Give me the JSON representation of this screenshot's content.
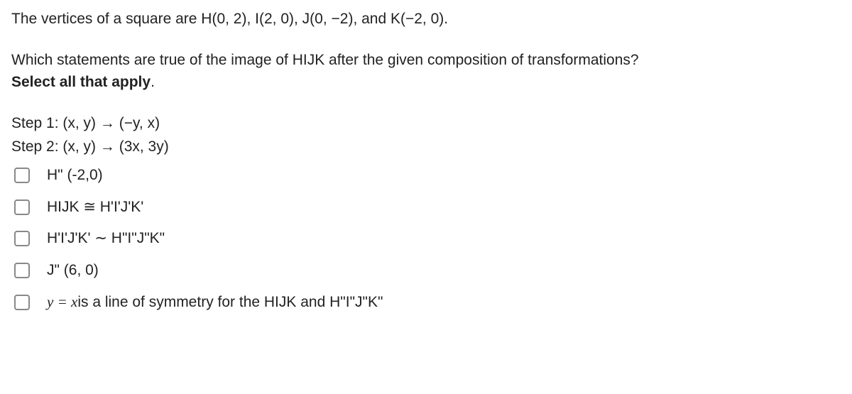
{
  "colors": {
    "text": "#222222",
    "background": "#ffffff",
    "checkbox_border": "#888888"
  },
  "typography": {
    "body_fontsize": 21,
    "body_fontfamily": "Segoe UI, Arial, sans-serif",
    "math_fontfamily": "Cambria Math, Times New Roman, serif"
  },
  "intro": "The vertices of a square are H(0, 2), I(2, 0), J(0, −2), and K(−2, 0).",
  "question": {
    "line1": "Which statements are true of the image of HIJK after the given composition of transformations?",
    "line2_prefix": "Select all that apply",
    "line2_suffix": "."
  },
  "steps": [
    "Step 1: (x, y) → (−y, x)",
    "Step 2: (x, y) → (3x, 3y)"
  ],
  "options": [
    {
      "html": "H\" (-2,0)"
    },
    {
      "html": "HIJK ≅ H'I'J'K'"
    },
    {
      "html": "H'I'J'K' ∼ H\"I\"J\"K\""
    },
    {
      "html": "J\" (6, 0)"
    },
    {
      "math_prefix": "y = x",
      "rest": "is a line of symmetry for the HIJK and H\"I\"J\"K\""
    }
  ]
}
